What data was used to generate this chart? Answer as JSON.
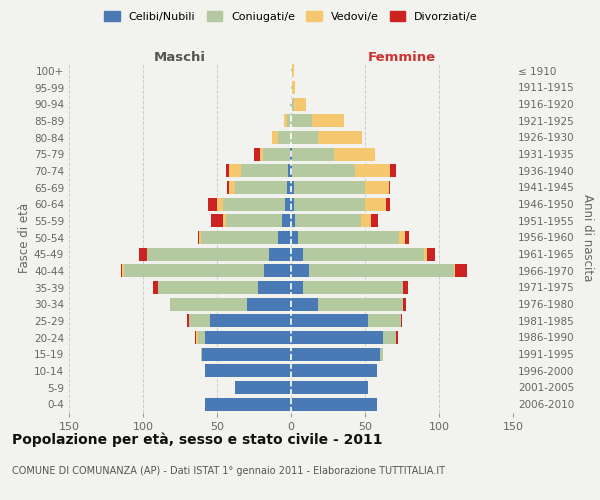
{
  "age_groups": [
    "0-4",
    "5-9",
    "10-14",
    "15-19",
    "20-24",
    "25-29",
    "30-34",
    "35-39",
    "40-44",
    "45-49",
    "50-54",
    "55-59",
    "60-64",
    "65-69",
    "70-74",
    "75-79",
    "80-84",
    "85-89",
    "90-94",
    "95-99",
    "100+"
  ],
  "birth_years": [
    "2006-2010",
    "2001-2005",
    "1996-2000",
    "1991-1995",
    "1986-1990",
    "1981-1985",
    "1976-1980",
    "1971-1975",
    "1966-1970",
    "1961-1965",
    "1956-1960",
    "1951-1955",
    "1946-1950",
    "1941-1945",
    "1936-1940",
    "1931-1935",
    "1926-1930",
    "1921-1925",
    "1916-1920",
    "1911-1915",
    "≤ 1910"
  ],
  "colors": {
    "celibi": "#4a7ab5",
    "coniugati": "#b5c9a0",
    "vedovi": "#f5c76e",
    "divorziati": "#cc2222"
  },
  "males": {
    "celibi": [
      58,
      38,
      58,
      60,
      58,
      55,
      30,
      22,
      18,
      15,
      9,
      6,
      4,
      3,
      2,
      1,
      0,
      0,
      0,
      0,
      0
    ],
    "coniugati": [
      0,
      0,
      0,
      1,
      5,
      14,
      52,
      68,
      95,
      82,
      52,
      38,
      42,
      35,
      32,
      18,
      9,
      3,
      1,
      0,
      0
    ],
    "vedovi": [
      0,
      0,
      0,
      0,
      1,
      0,
      0,
      0,
      1,
      0,
      1,
      2,
      4,
      4,
      8,
      2,
      4,
      2,
      0,
      0,
      0
    ],
    "divorziati": [
      0,
      0,
      0,
      0,
      1,
      1,
      0,
      3,
      1,
      6,
      1,
      8,
      6,
      1,
      2,
      4,
      0,
      0,
      0,
      0,
      0
    ]
  },
  "females": {
    "celibi": [
      58,
      52,
      58,
      60,
      62,
      52,
      18,
      8,
      12,
      8,
      5,
      3,
      2,
      2,
      1,
      1,
      0,
      0,
      0,
      0,
      0
    ],
    "coniugati": [
      0,
      0,
      0,
      2,
      9,
      22,
      58,
      68,
      98,
      82,
      68,
      44,
      48,
      48,
      42,
      28,
      18,
      14,
      2,
      1,
      1
    ],
    "vedovi": [
      0,
      0,
      0,
      0,
      0,
      0,
      0,
      0,
      1,
      2,
      4,
      7,
      14,
      16,
      24,
      28,
      30,
      22,
      8,
      2,
      1
    ],
    "divorziati": [
      0,
      0,
      0,
      0,
      1,
      1,
      2,
      3,
      8,
      5,
      3,
      5,
      3,
      1,
      4,
      0,
      0,
      0,
      0,
      0,
      0
    ]
  },
  "title": "Popolazione per età, sesso e stato civile - 2011",
  "subtitle": "COMUNE DI COMUNANZA (AP) - Dati ISTAT 1° gennaio 2011 - Elaborazione TUTTITALIA.IT",
  "xlabel_left": "Maschi",
  "xlabel_right": "Femmine",
  "ylabel_left": "Fasce di età",
  "ylabel_right": "Anni di nascita",
  "legend_labels": [
    "Celibi/Nubili",
    "Coniugati/e",
    "Vedovi/e",
    "Divorziati/e"
  ],
  "xlim": 150,
  "background_color": "#f2f2ee"
}
